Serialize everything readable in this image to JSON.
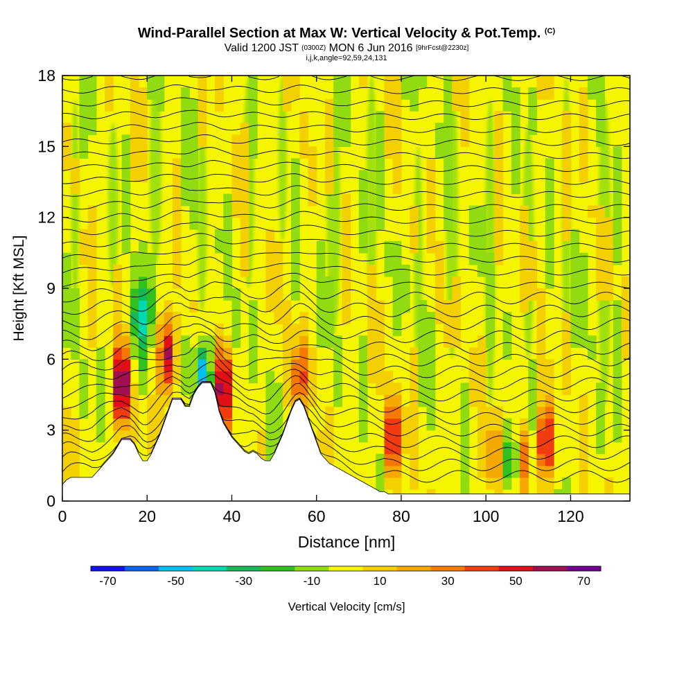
{
  "header": {
    "title_main": "Wind-Parallel Section at Max W: Vertical Velocity & Pot.Temp.",
    "title_tag": "(C)",
    "valid_prefix": "Valid 1200 JST",
    "valid_utc": "(0300Z)",
    "valid_date": "MON 6 Jun 2016",
    "valid_fcst": "[9hrFcst@2230z]",
    "indices": "i,j,k,angle=92,59,24,131"
  },
  "colors": {
    "terrain": "#ffffff",
    "contour": "#000000",
    "frame": "#000000",
    "field_background": "#f5f500"
  },
  "chart_data": {
    "type": "heatmap",
    "xlabel": "Distance [nm]",
    "ylabel": "Height [Kft MSL]",
    "xlim": [
      0,
      134
    ],
    "ylim": [
      0,
      18
    ],
    "x_ticks": [
      "0",
      "20",
      "40",
      "60",
      "80",
      "100",
      "120"
    ],
    "y_ticks": [
      "0",
      "3",
      "6",
      "9",
      "12",
      "15",
      "18"
    ],
    "field": "Vertical Velocity",
    "contour_field": "Pot.Temp.",
    "colorbar": {
      "label": "Vertical Velocity [cm/s]",
      "min": -75,
      "max": 75,
      "step": 10,
      "tick_labels": [
        "-70",
        "-50",
        "-30",
        "-10",
        "10",
        "30",
        "50",
        "70"
      ],
      "colors": [
        "#1010f0",
        "#0a64f0",
        "#00c0f0",
        "#00d8b0",
        "#18b858",
        "#30c020",
        "#90dc10",
        "#f5f500",
        "#f5d000",
        "#f5a800",
        "#f57800",
        "#f03c10",
        "#e01018",
        "#a01050",
        "#700090"
      ]
    },
    "terrain": {
      "x": [
        0,
        1,
        2,
        3,
        4,
        5,
        6,
        7,
        8,
        9,
        10,
        11,
        12,
        13,
        14,
        15,
        16,
        17,
        18,
        19,
        20,
        21,
        22,
        23,
        24,
        25,
        26,
        27,
        28,
        29,
        30,
        31,
        32,
        33,
        34,
        35,
        36,
        37,
        38,
        39,
        40,
        41,
        42,
        43,
        44,
        45,
        46,
        47,
        48,
        49,
        50,
        51,
        52,
        53,
        54,
        55,
        56,
        57,
        58,
        59,
        60,
        61,
        62,
        63,
        64,
        65,
        66,
        67,
        68,
        69,
        70,
        71,
        72,
        73,
        74,
        75,
        76,
        77,
        78,
        79,
        80,
        134
      ],
      "kft": [
        0.7,
        0.9,
        1.0,
        1.0,
        1.0,
        1.0,
        1.0,
        1.0,
        1.2,
        1.4,
        1.6,
        1.8,
        2.0,
        2.3,
        2.6,
        2.6,
        2.6,
        2.4,
        2.0,
        1.7,
        1.7,
        2.0,
        2.4,
        2.8,
        3.3,
        3.8,
        4.3,
        4.3,
        4.3,
        4.0,
        4.0,
        4.5,
        4.8,
        5.0,
        5.0,
        5.0,
        4.6,
        3.8,
        3.3,
        3.0,
        2.7,
        2.5,
        2.3,
        2.1,
        2.0,
        2.1,
        2.0,
        1.8,
        1.7,
        1.7,
        2.0,
        2.4,
        2.8,
        3.3,
        3.8,
        4.2,
        4.3,
        4.0,
        3.5,
        3.0,
        2.5,
        2.0,
        1.8,
        1.6,
        1.5,
        1.4,
        1.3,
        1.2,
        1.1,
        1.0,
        0.9,
        0.8,
        0.7,
        0.6,
        0.5,
        0.4,
        0.4,
        0.3,
        0.3,
        0.3,
        0.3,
        0.3
      ]
    },
    "updrafts": [
      {
        "x": 14,
        "kft": 4.8,
        "max_cm_s": 75
      },
      {
        "x": 25,
        "kft": 6.2,
        "max_cm_s": 70
      },
      {
        "x": 38,
        "kft": 4.8,
        "max_cm_s": 60
      },
      {
        "x": 56,
        "kft": 5.3,
        "max_cm_s": 40
      },
      {
        "x": 78,
        "kft": 2.7,
        "max_cm_s": 50
      },
      {
        "x": 114,
        "kft": 2.5,
        "max_cm_s": 55
      },
      {
        "x": 109,
        "kft": 1.8,
        "max_cm_s": 35
      },
      {
        "x": 102,
        "kft": 2.0,
        "max_cm_s": 30
      }
    ],
    "downdrafts": [
      {
        "x": 33,
        "kft": 5.3,
        "min_cm_s": -55
      },
      {
        "x": 106,
        "kft": 1.8,
        "min_cm_s": -40
      },
      {
        "x": 18,
        "kft": 7.8,
        "min_cm_s": -30
      }
    ]
  }
}
